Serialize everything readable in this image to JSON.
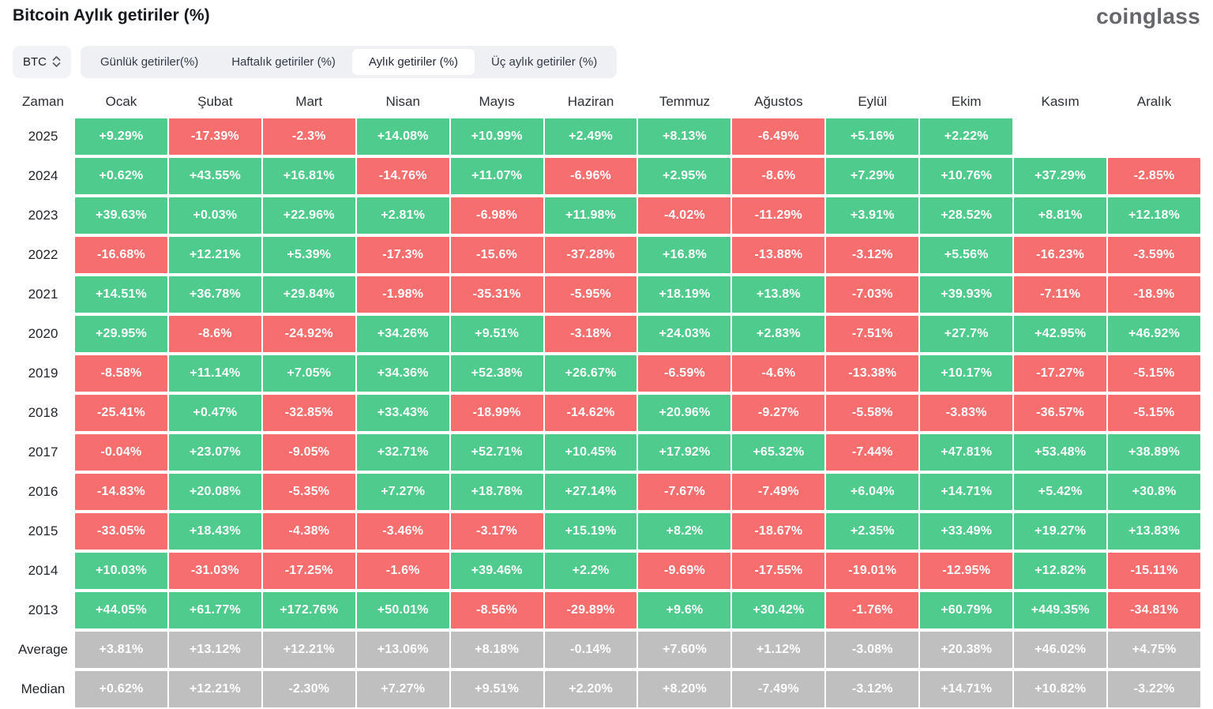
{
  "header": {
    "title": "Bitcoin Aylık getiriler (%)",
    "logo": "coinglass"
  },
  "controls": {
    "coin": "BTC",
    "coin_selector_icon": "chevron-up-down-icon",
    "tabs": [
      "Günlük getiriler(%)",
      "Haftalık getiriler (%)",
      "Aylık getiriler (%)",
      "Üç aylık getiriler (%)"
    ],
    "active_tab": 2
  },
  "chart_data": {
    "type": "heatmap",
    "title": "Bitcoin Aylık getiriler (%)",
    "columns": [
      "Zaman",
      "Ocak",
      "Şubat",
      "Mart",
      "Nisan",
      "Mayıs",
      "Haziran",
      "Temmuz",
      "Ağustos",
      "Eylül",
      "Ekim",
      "Kasım",
      "Aralık"
    ],
    "rows": [
      {
        "label": "2025",
        "type": "year",
        "values": [
          "+9.29%",
          "-17.39%",
          "-2.3%",
          "+14.08%",
          "+10.99%",
          "+2.49%",
          "+8.13%",
          "-6.49%",
          "+5.16%",
          "+2.22%",
          null,
          null
        ]
      },
      {
        "label": "2024",
        "type": "year",
        "values": [
          "+0.62%",
          "+43.55%",
          "+16.81%",
          "-14.76%",
          "+11.07%",
          "-6.96%",
          "+2.95%",
          "-8.6%",
          "+7.29%",
          "+10.76%",
          "+37.29%",
          "-2.85%"
        ]
      },
      {
        "label": "2023",
        "type": "year",
        "values": [
          "+39.63%",
          "+0.03%",
          "+22.96%",
          "+2.81%",
          "-6.98%",
          "+11.98%",
          "-4.02%",
          "-11.29%",
          "+3.91%",
          "+28.52%",
          "+8.81%",
          "+12.18%"
        ]
      },
      {
        "label": "2022",
        "type": "year",
        "values": [
          "-16.68%",
          "+12.21%",
          "+5.39%",
          "-17.3%",
          "-15.6%",
          "-37.28%",
          "+16.8%",
          "-13.88%",
          "-3.12%",
          "+5.56%",
          "-16.23%",
          "-3.59%"
        ]
      },
      {
        "label": "2021",
        "type": "year",
        "values": [
          "+14.51%",
          "+36.78%",
          "+29.84%",
          "-1.98%",
          "-35.31%",
          "-5.95%",
          "+18.19%",
          "+13.8%",
          "-7.03%",
          "+39.93%",
          "-7.11%",
          "-18.9%"
        ]
      },
      {
        "label": "2020",
        "type": "year",
        "values": [
          "+29.95%",
          "-8.6%",
          "-24.92%",
          "+34.26%",
          "+9.51%",
          "-3.18%",
          "+24.03%",
          "+2.83%",
          "-7.51%",
          "+27.7%",
          "+42.95%",
          "+46.92%"
        ]
      },
      {
        "label": "2019",
        "type": "year",
        "values": [
          "-8.58%",
          "+11.14%",
          "+7.05%",
          "+34.36%",
          "+52.38%",
          "+26.67%",
          "-6.59%",
          "-4.6%",
          "-13.38%",
          "+10.17%",
          "-17.27%",
          "-5.15%"
        ]
      },
      {
        "label": "2018",
        "type": "year",
        "values": [
          "-25.41%",
          "+0.47%",
          "-32.85%",
          "+33.43%",
          "-18.99%",
          "-14.62%",
          "+20.96%",
          "-9.27%",
          "-5.58%",
          "-3.83%",
          "-36.57%",
          "-5.15%"
        ]
      },
      {
        "label": "2017",
        "type": "year",
        "values": [
          "-0.04%",
          "+23.07%",
          "-9.05%",
          "+32.71%",
          "+52.71%",
          "+10.45%",
          "+17.92%",
          "+65.32%",
          "-7.44%",
          "+47.81%",
          "+53.48%",
          "+38.89%"
        ]
      },
      {
        "label": "2016",
        "type": "year",
        "values": [
          "-14.83%",
          "+20.08%",
          "-5.35%",
          "+7.27%",
          "+18.78%",
          "+27.14%",
          "-7.67%",
          "-7.49%",
          "+6.04%",
          "+14.71%",
          "+5.42%",
          "+30.8%"
        ]
      },
      {
        "label": "2015",
        "type": "year",
        "values": [
          "-33.05%",
          "+18.43%",
          "-4.38%",
          "-3.46%",
          "-3.17%",
          "+15.19%",
          "+8.2%",
          "-18.67%",
          "+2.35%",
          "+33.49%",
          "+19.27%",
          "+13.83%"
        ]
      },
      {
        "label": "2014",
        "type": "year",
        "values": [
          "+10.03%",
          "-31.03%",
          "-17.25%",
          "-1.6%",
          "+39.46%",
          "+2.2%",
          "-9.69%",
          "-17.55%",
          "-19.01%",
          "-12.95%",
          "+12.82%",
          "-15.11%"
        ]
      },
      {
        "label": "2013",
        "type": "year",
        "values": [
          "+44.05%",
          "+61.77%",
          "+172.76%",
          "+50.01%",
          "-8.56%",
          "-29.89%",
          "+9.6%",
          "+30.42%",
          "-1.76%",
          "+60.79%",
          "+449.35%",
          "-34.81%"
        ]
      },
      {
        "label": "Average",
        "type": "summary",
        "values": [
          "+3.81%",
          "+13.12%",
          "+12.21%",
          "+13.06%",
          "+8.18%",
          "-0.14%",
          "+7.60%",
          "+1.12%",
          "-3.08%",
          "+20.38%",
          "+46.02%",
          "+4.75%"
        ]
      },
      {
        "label": "Median",
        "type": "summary",
        "values": [
          "+0.62%",
          "+12.21%",
          "-2.30%",
          "+7.27%",
          "+9.51%",
          "+2.20%",
          "+8.20%",
          "-7.49%",
          "-3.12%",
          "+14.71%",
          "+10.82%",
          "-3.22%"
        ]
      }
    ],
    "colors": {
      "positive": "#4ecb8d",
      "negative": "#f76e6e",
      "summary": "#bfbfbf",
      "cell_text": "#ffffff"
    },
    "legend_position": "none",
    "grid": false
  }
}
